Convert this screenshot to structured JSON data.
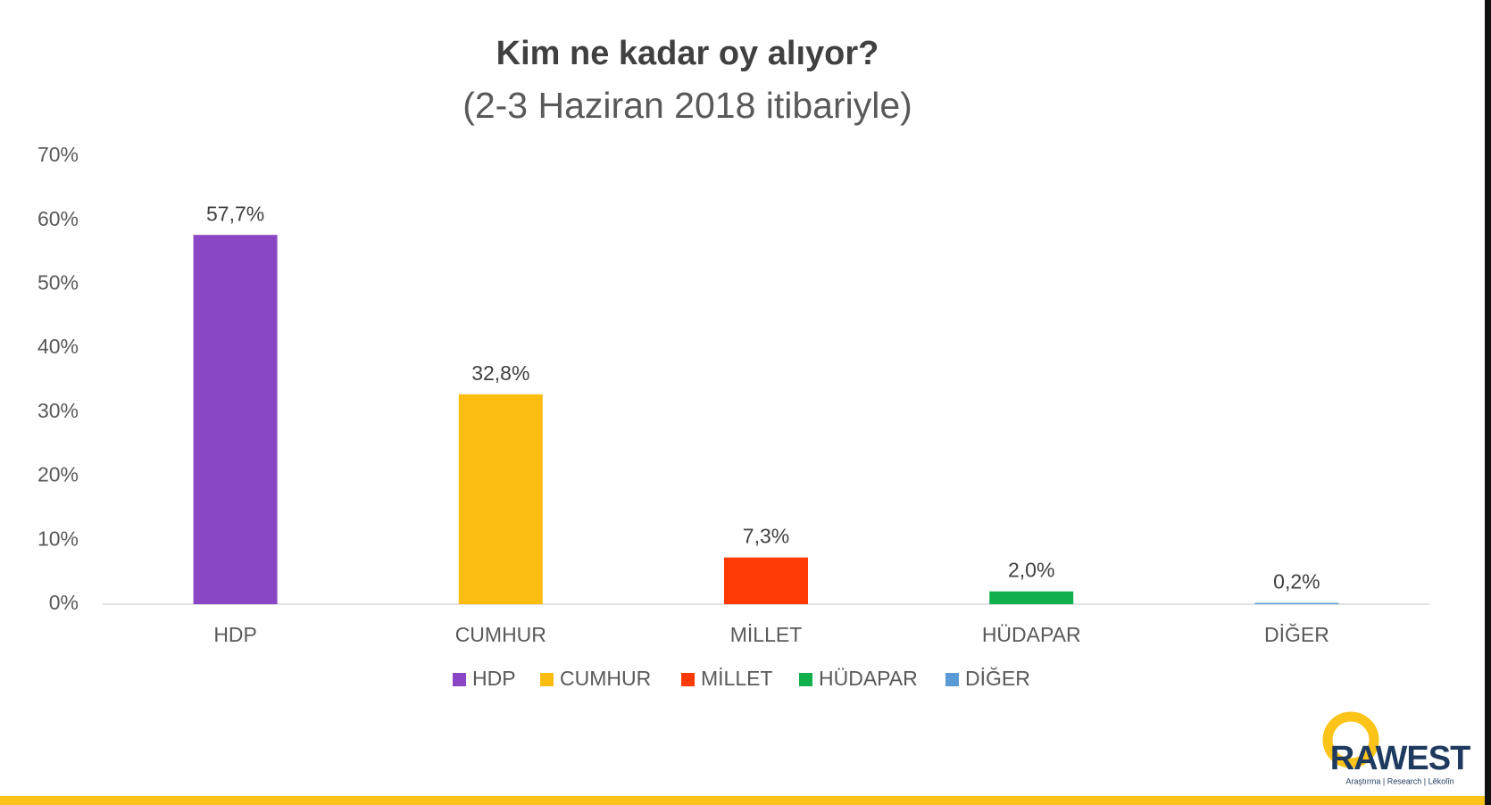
{
  "chart_data": {
    "type": "bar",
    "title": "Kim ne kadar oy alıyor?",
    "subtitle": "(2-3 Haziran 2018 itibariyle)",
    "categories": [
      "HDP",
      "CUMHUR",
      "MİLLET",
      "HÜDAPAR",
      "DİĞER"
    ],
    "values": [
      57.7,
      32.8,
      7.3,
      2.0,
      0.2
    ],
    "value_labels": [
      "57,7%",
      "32,8%",
      "7,3%",
      "2,0%",
      "0,2%"
    ],
    "colors": [
      "#8b46c6",
      "#fcbc10",
      "#ff3a02",
      "#11b04c",
      "#5b9bd5"
    ],
    "ylim": [
      0,
      70
    ],
    "yticks": [
      {
        "value": 0,
        "label": "0%"
      },
      {
        "value": 10,
        "label": "10%"
      },
      {
        "value": 20,
        "label": "20%"
      },
      {
        "value": 30,
        "label": "30%"
      },
      {
        "value": 40,
        "label": "40%"
      },
      {
        "value": 50,
        "label": "50%"
      },
      {
        "value": 60,
        "label": "60%"
      },
      {
        "value": 70,
        "label": "70%"
      }
    ],
    "grid": false,
    "legend": "bottom"
  },
  "logo": {
    "name": "RAWEST",
    "tagline": "Araştırma | Research | Lêkolîn"
  }
}
